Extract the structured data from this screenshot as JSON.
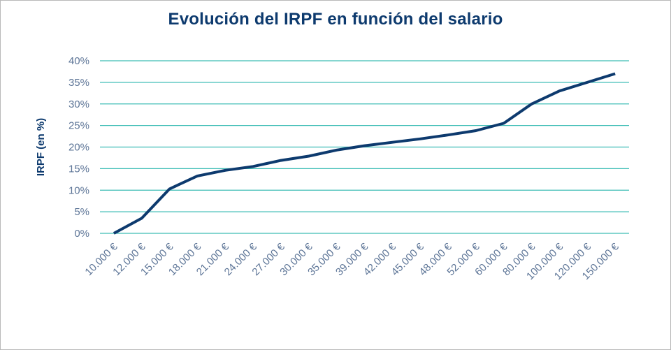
{
  "chart_data": {
    "type": "line",
    "title": "Evolución del IRPF en función del salario",
    "xlabel": "",
    "ylabel": "IRPF (en %)",
    "categories": [
      "10.000 €",
      "12.000 €",
      "15.000 €",
      "18.000 €",
      "21.000 €",
      "24.000 €",
      "27.000 €",
      "30.000 €",
      "35.000 €",
      "39.000 €",
      "42.000 €",
      "45.000 €",
      "48.000 €",
      "52.000 €",
      "60.000 €",
      "80.000 €",
      "100.000 €",
      "120.000 €",
      "150.000 €"
    ],
    "series": [
      {
        "name": "IRPF",
        "values": [
          0,
          3.5,
          10.3,
          13.3,
          14.6,
          15.5,
          16.9,
          17.9,
          19.3,
          20.3,
          21.1,
          21.9,
          22.8,
          23.8,
          25.5,
          30.0,
          33.0,
          35.0,
          37.0
        ]
      }
    ],
    "ylim": [
      0,
      40
    ],
    "yticks": [
      "0%",
      "5%",
      "10%",
      "15%",
      "20%",
      "25%",
      "30%",
      "35%",
      "40%"
    ],
    "grid": true,
    "colors": {
      "line": "#0d3a6e",
      "grid": "#3dbdb5",
      "tick_text": "#5d7597"
    }
  }
}
